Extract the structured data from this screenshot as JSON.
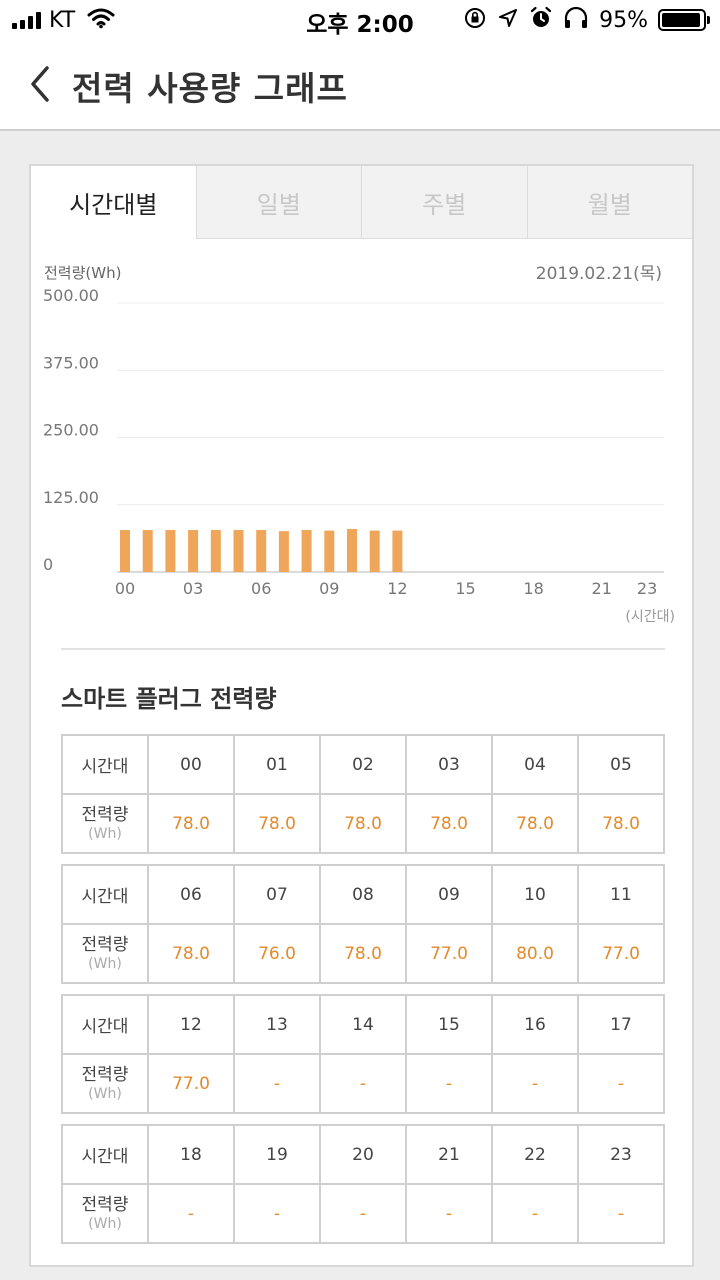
{
  "status_bar": {
    "carrier": "KT",
    "time": "오후 2:00",
    "battery_percent": "95%",
    "battery_level": 0.95,
    "icons": [
      "signal-icon",
      "wifi-icon",
      "orientation-lock-icon",
      "location-icon",
      "alarm-icon",
      "headphones-icon",
      "battery-icon"
    ]
  },
  "nav": {
    "title": "전력 사용량 그래프",
    "back_icon": "chevron-left-icon"
  },
  "tabs": [
    {
      "label": "시간대별",
      "active": true
    },
    {
      "label": "일별",
      "active": false
    },
    {
      "label": "주별",
      "active": false
    },
    {
      "label": "월별",
      "active": false
    }
  ],
  "chart_header": {
    "y_title": "전력량(Wh)",
    "date": "2019.02.21(목)",
    "x_unit": "(시간대)"
  },
  "chart_data": {
    "type": "bar",
    "ylabel": "전력량(Wh)",
    "xlabel": "(시간대)",
    "ylim": [
      0,
      500
    ],
    "y_ticks": [
      "0",
      "125.00",
      "250.00",
      "375.00",
      "500.00"
    ],
    "x_ticks": [
      "00",
      "03",
      "06",
      "09",
      "12",
      "15",
      "18",
      "21",
      "23"
    ],
    "categories": [
      "00",
      "01",
      "02",
      "03",
      "04",
      "05",
      "06",
      "07",
      "08",
      "09",
      "10",
      "11",
      "12",
      "13",
      "14",
      "15",
      "16",
      "17",
      "18",
      "19",
      "20",
      "21",
      "22",
      "23"
    ],
    "values": [
      78.0,
      78.0,
      78.0,
      78.0,
      78.0,
      78.0,
      78.0,
      76.0,
      78.0,
      77.0,
      80.0,
      77.0,
      77.0,
      null,
      null,
      null,
      null,
      null,
      null,
      null,
      null,
      null,
      null,
      null
    ],
    "bar_color": "#f0a65a",
    "grid": true
  },
  "section_title": "스마트 플러그 전력량",
  "table_labels": {
    "hour_label": "시간대",
    "usage_label": "전력량",
    "usage_unit": "(Wh)"
  },
  "table_groups": [
    {
      "hours": [
        "00",
        "01",
        "02",
        "03",
        "04",
        "05"
      ],
      "values": [
        "78.0",
        "78.0",
        "78.0",
        "78.0",
        "78.0",
        "78.0"
      ]
    },
    {
      "hours": [
        "06",
        "07",
        "08",
        "09",
        "10",
        "11"
      ],
      "values": [
        "78.0",
        "76.0",
        "78.0",
        "77.0",
        "80.0",
        "77.0"
      ]
    },
    {
      "hours": [
        "12",
        "13",
        "14",
        "15",
        "16",
        "17"
      ],
      "values": [
        "77.0",
        "-",
        "-",
        "-",
        "-",
        "-"
      ]
    },
    {
      "hours": [
        "18",
        "19",
        "20",
        "21",
        "22",
        "23"
      ],
      "values": [
        "-",
        "-",
        "-",
        "-",
        "-",
        "-"
      ]
    }
  ],
  "colors": {
    "accent": "#e48a2b",
    "bar": "#f0a65a"
  }
}
